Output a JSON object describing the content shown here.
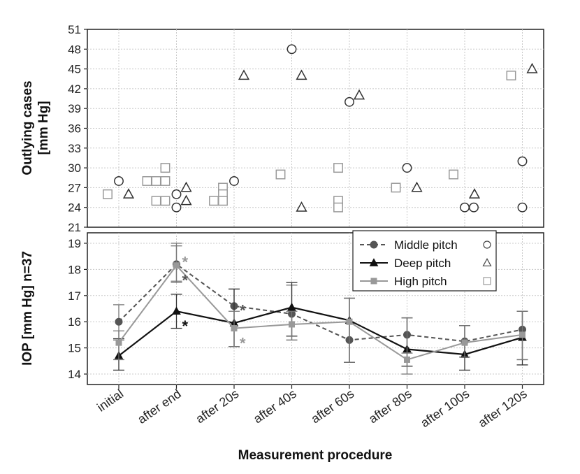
{
  "chart_data": {
    "x_categories": [
      "initial",
      "after end",
      "after 20s",
      "after 40s",
      "after 60s",
      "after 80s",
      "after 100s",
      "after 120s"
    ],
    "xlabel": "Measurement procedure",
    "series_styles": [
      {
        "name": "Middle pitch",
        "color": "#555555",
        "dash": "6,4",
        "marker": "circle",
        "outlier_marker": "○"
      },
      {
        "name": "Deep pitch",
        "color": "#111111",
        "dash": "",
        "marker": "triangle",
        "outlier_marker": "△"
      },
      {
        "name": "High pitch",
        "color": "#999999",
        "dash": "",
        "marker": "square",
        "outlier_marker": "□"
      }
    ],
    "charts": [
      {
        "type": "scatter",
        "ylabel_line1": "Outlying cases",
        "ylabel_line2": "[mm Hg]",
        "ylim": [
          21,
          51
        ],
        "yticks": [
          21,
          24,
          27,
          30,
          33,
          36,
          39,
          42,
          45,
          48,
          51
        ],
        "grid": true,
        "points": {
          "Middle pitch": [
            [
              0,
              28
            ],
            [
              1,
              26
            ],
            [
              1,
              24
            ],
            [
              2,
              28
            ],
            [
              3,
              48
            ],
            [
              4,
              40
            ],
            [
              5,
              30
            ],
            [
              6,
              24
            ],
            [
              6,
              24
            ],
            [
              7,
              31
            ],
            [
              7,
              24
            ]
          ],
          "Deep pitch": [
            [
              0,
              26
            ],
            [
              1,
              27
            ],
            [
              1,
              25
            ],
            [
              2,
              44
            ],
            [
              3,
              44
            ],
            [
              3,
              24
            ],
            [
              4,
              41
            ],
            [
              5,
              27
            ],
            [
              6,
              26
            ],
            [
              7,
              45
            ]
          ],
          "High pitch": [
            [
              0,
              26
            ],
            [
              1,
              30
            ],
            [
              1,
              28
            ],
            [
              1,
              28
            ],
            [
              1,
              28
            ],
            [
              1,
              25
            ],
            [
              1,
              25
            ],
            [
              2,
              27
            ],
            [
              2,
              26
            ],
            [
              2,
              25
            ],
            [
              2,
              25
            ],
            [
              3,
              29
            ],
            [
              4,
              30
            ],
            [
              4,
              25
            ],
            [
              4,
              24
            ],
            [
              5,
              27
            ],
            [
              6,
              29
            ],
            [
              7,
              44
            ]
          ]
        }
      },
      {
        "type": "line",
        "ylabel": "IOP [mm Hg] n=37",
        "ylim": [
          13.6,
          19.4
        ],
        "yticks": [
          14,
          15,
          16,
          17,
          18,
          19
        ],
        "grid": true,
        "legend_position": "top-right",
        "series": [
          {
            "name": "Middle pitch",
            "values": [
              16.0,
              18.2,
              16.6,
              16.3,
              15.3,
              15.5,
              15.25,
              15.7
            ],
            "err_low": [
              15.3,
              17.5,
              15.05,
              15.3,
              14.45,
              14.8,
              14.65,
              14.55
            ],
            "err_high": [
              16.65,
              18.9,
              17.25,
              17.4,
              16.9,
              16.15,
              15.85,
              16.4
            ]
          },
          {
            "name": "Deep pitch",
            "values": [
              14.7,
              16.4,
              15.95,
              16.55,
              16.05,
              14.95,
              14.75,
              15.4
            ],
            "err_low": [
              14.15,
              15.75,
              15.05,
              15.45,
              14.45,
              14.3,
              14.15,
              14.35
            ],
            "err_high": [
              15.35,
              17.05,
              17.25,
              17.5,
              16.9,
              16.15,
              15.85,
              16.4
            ]
          },
          {
            "name": "High pitch",
            "values": [
              15.2,
              18.15,
              15.75,
              15.9,
              16.0,
              14.55,
              15.2,
              15.5
            ],
            "err_low": [
              14.55,
              17.55,
              15.05,
              15.3,
              14.45,
              14.0,
              14.65,
              14.55
            ],
            "err_high": [
              15.65,
              19.0,
              16.4,
              16.4,
              16.9,
              16.15,
              15.85,
              16.4
            ]
          }
        ],
        "significance_marks": [
          {
            "label": "*",
            "series": "High pitch",
            "x": 1,
            "y": 18.4
          },
          {
            "label": "*",
            "series": "Middle pitch",
            "x": 1,
            "y": 17.7
          },
          {
            "label": "*",
            "series": "Deep pitch",
            "x": 1,
            "y": 15.95
          },
          {
            "label": "*",
            "series": "Middle pitch",
            "x": 2,
            "y": 16.55
          },
          {
            "label": "*",
            "series": "High pitch",
            "x": 2,
            "y": 15.3
          }
        ]
      }
    ]
  }
}
